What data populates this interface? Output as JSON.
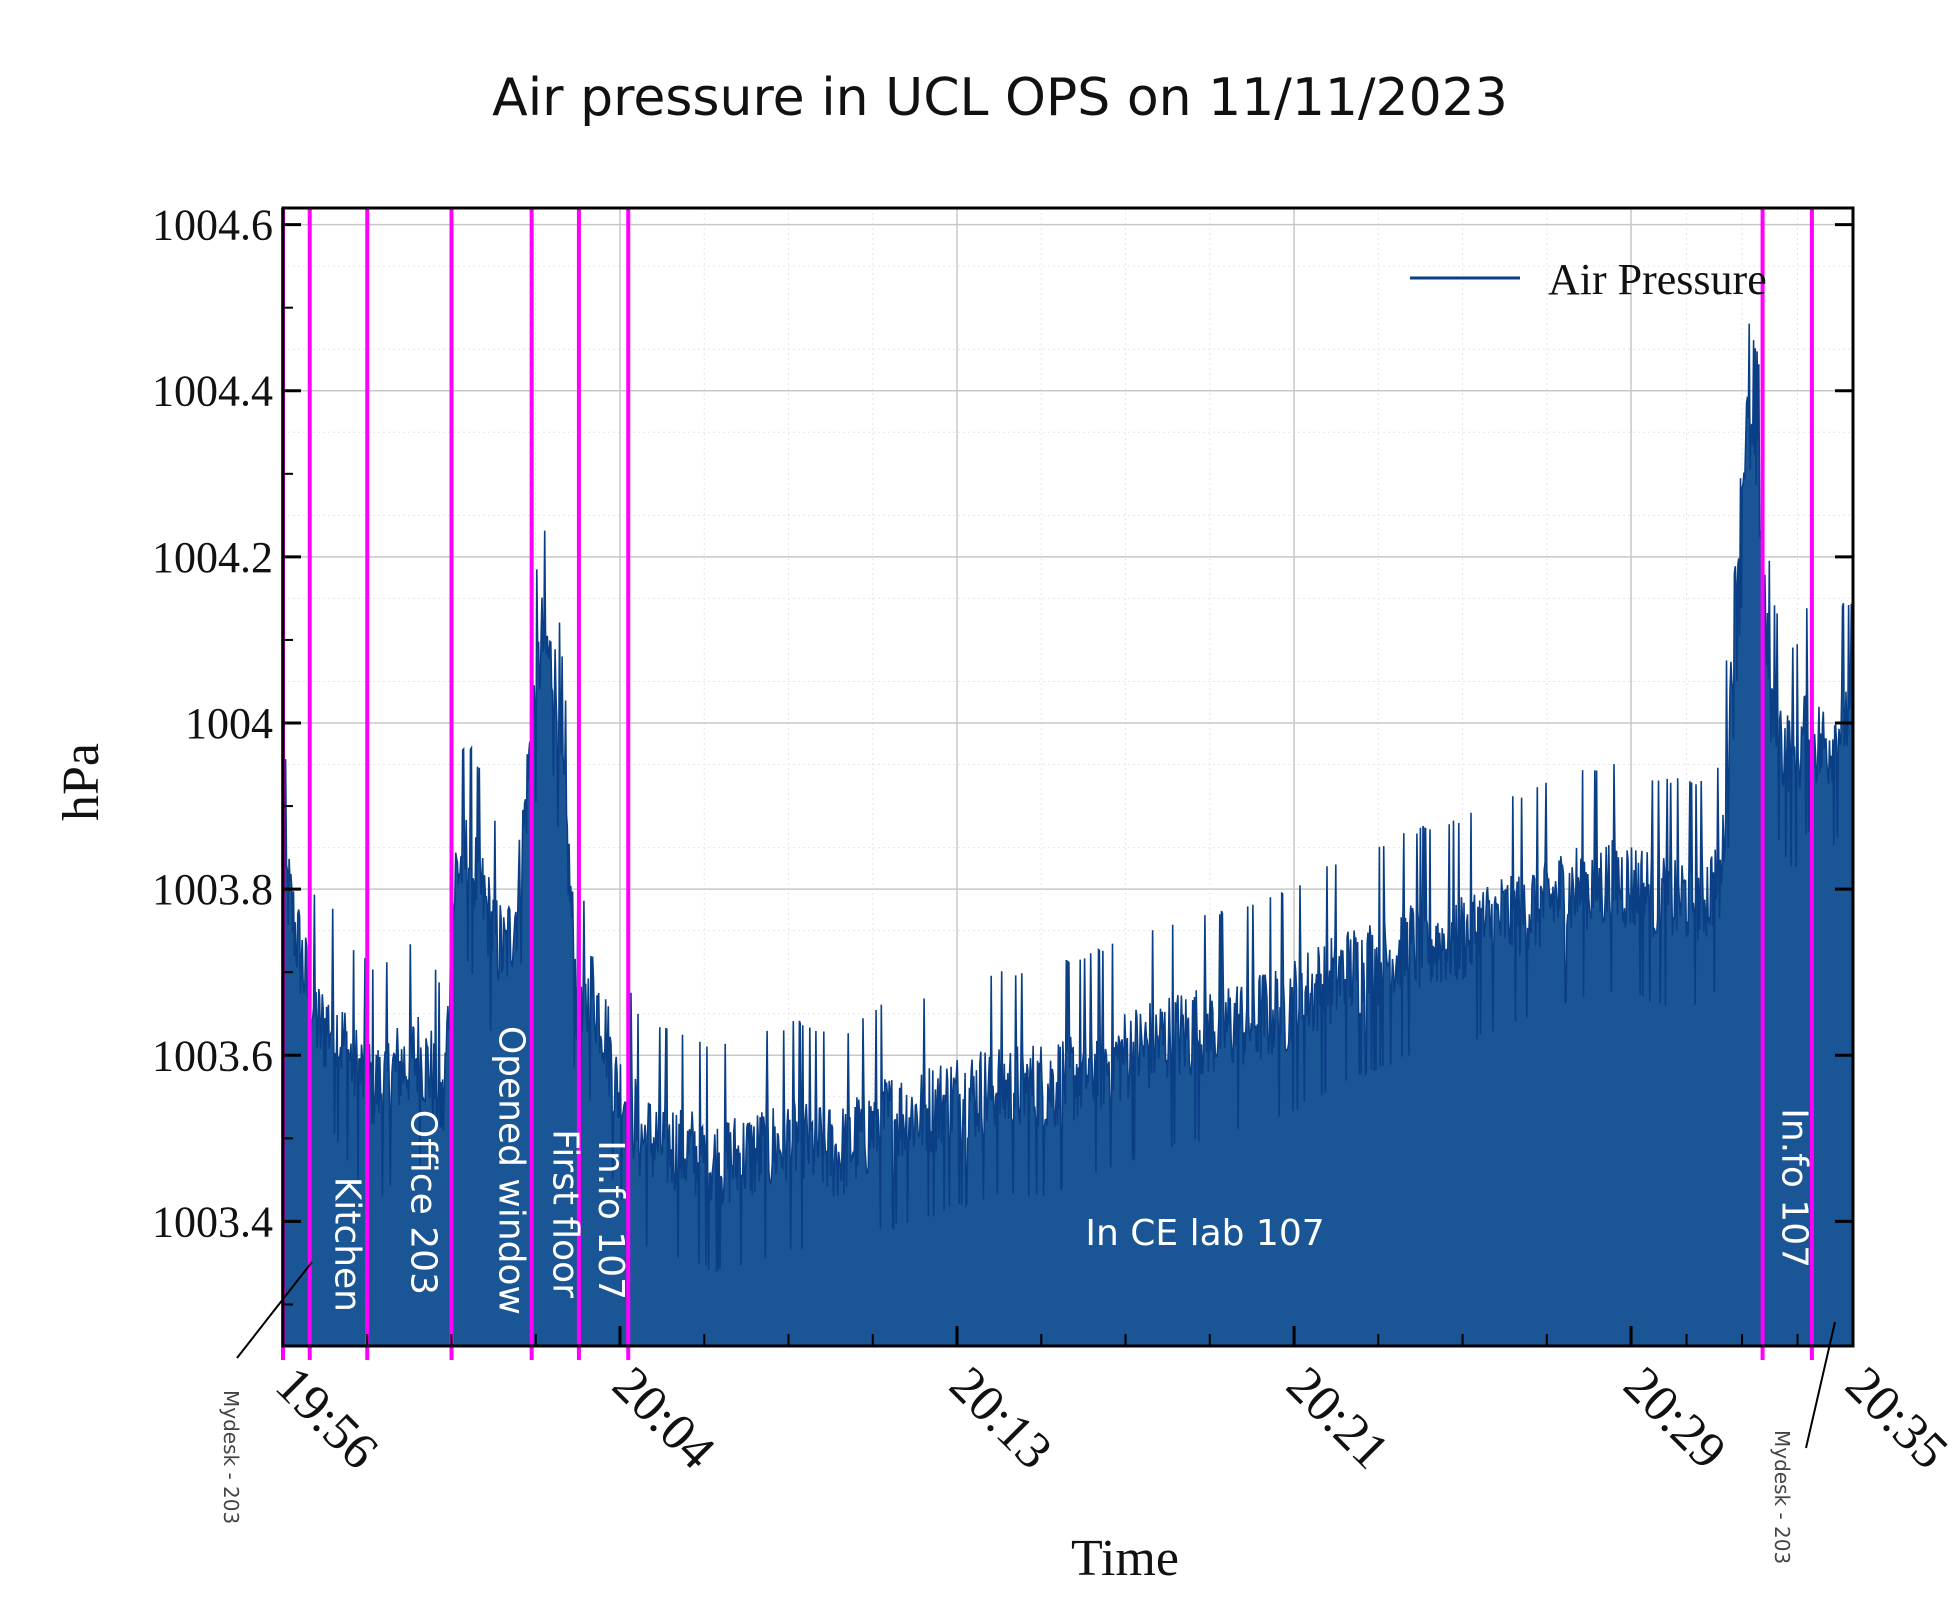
{
  "chart_data": {
    "type": "area",
    "title": "Air pressure in UCL OPS on 11/11/2023",
    "xlabel": "Time",
    "ylabel": "hPa",
    "ylim": [
      1003.25,
      1004.62
    ],
    "yticks": [
      1003.4,
      1003.6,
      1003.8,
      1004,
      1004.2,
      1004.4,
      1004.6
    ],
    "ytick_labels": [
      "1003.4",
      "1003.6",
      "1003.8",
      "1004",
      "1004.2",
      "1004.4",
      "1004.6"
    ],
    "xlim_minutes": [
      0,
      38.2
    ],
    "x_origin": "19:56",
    "xticks_minutes": [
      0,
      8.2,
      16.4,
      24.6,
      32.8,
      38.2
    ],
    "xtick_labels": [
      "19:56",
      "20:04",
      "20:13",
      "20:21",
      "20:29",
      "20:35"
    ],
    "grid": true,
    "legend": {
      "position": "top-right",
      "entries": [
        "Air Pressure"
      ]
    },
    "series": [
      {
        "name": "Air Pressure",
        "x_minutes": [
          0.0,
          0.3,
          0.6,
          0.9,
          1.2,
          1.5,
          1.8,
          2.1,
          2.4,
          2.7,
          3.0,
          3.3,
          3.6,
          3.9,
          4.2,
          4.5,
          4.8,
          5.1,
          5.4,
          5.7,
          6.0,
          6.3,
          6.6,
          6.9,
          7.2,
          7.5,
          7.8,
          8.1,
          8.4,
          8.7,
          9.5,
          10.5,
          11.5,
          12.5,
          13.5,
          14.5,
          15.5,
          16.5,
          17.5,
          18.5,
          19.5,
          20.5,
          21.5,
          22.5,
          23.5,
          24.5,
          25.5,
          26.5,
          27.5,
          28.5,
          29.5,
          30.5,
          31.5,
          32.5,
          33.5,
          34.5,
          35.0,
          35.3,
          35.6,
          35.9,
          36.2,
          36.5,
          36.8,
          37.1,
          37.4,
          37.7,
          38.0,
          38.2
        ],
        "values": [
          1003.83,
          1003.75,
          1003.68,
          1003.63,
          1003.64,
          1003.61,
          1003.58,
          1003.57,
          1003.56,
          1003.58,
          1003.59,
          1003.6,
          1003.58,
          1003.53,
          1003.82,
          1003.84,
          1003.8,
          1003.75,
          1003.72,
          1003.78,
          1003.96,
          1004.1,
          1004.06,
          1003.87,
          1003.62,
          1003.68,
          1003.64,
          1003.56,
          1003.55,
          1003.5,
          1003.49,
          1003.47,
          1003.48,
          1003.5,
          1003.48,
          1003.52,
          1003.53,
          1003.55,
          1003.56,
          1003.56,
          1003.58,
          1003.6,
          1003.62,
          1003.63,
          1003.64,
          1003.66,
          1003.69,
          1003.71,
          1003.73,
          1003.74,
          1003.76,
          1003.78,
          1003.8,
          1003.81,
          1003.79,
          1003.79,
          1003.81,
          1004.12,
          1004.36,
          1004.3,
          1004.02,
          1003.97,
          1003.95,
          1004.0,
          1003.97,
          1003.98,
          1004.01,
          1004.0
        ],
        "noise_amplitude_hpa": 0.06,
        "fill": true
      }
    ],
    "event_lines": [
      {
        "minute": 0.0,
        "label": ""
      },
      {
        "minute": 0.65,
        "label": "Kitchen"
      },
      {
        "minute": 2.05,
        "label": "Office 203"
      },
      {
        "minute": 4.1,
        "label": "Opened window"
      },
      {
        "minute": 6.05,
        "label": "First floor"
      },
      {
        "minute": 7.2,
        "label": "In.fo 107"
      },
      {
        "minute": 8.4,
        "label": "In CE lab 107"
      },
      {
        "minute": 36.0,
        "label": "In.fo 107"
      },
      {
        "minute": 37.2,
        "label": ""
      }
    ],
    "annotations": [
      "Mydesk - 203",
      "Mydesk - 203"
    ],
    "colors": {
      "line": "#0a3f86",
      "fill": "#1a5596",
      "event_line": "#ff00ff",
      "grid": "#c8c8c8",
      "minor_grid": "#e6e6e6"
    }
  }
}
